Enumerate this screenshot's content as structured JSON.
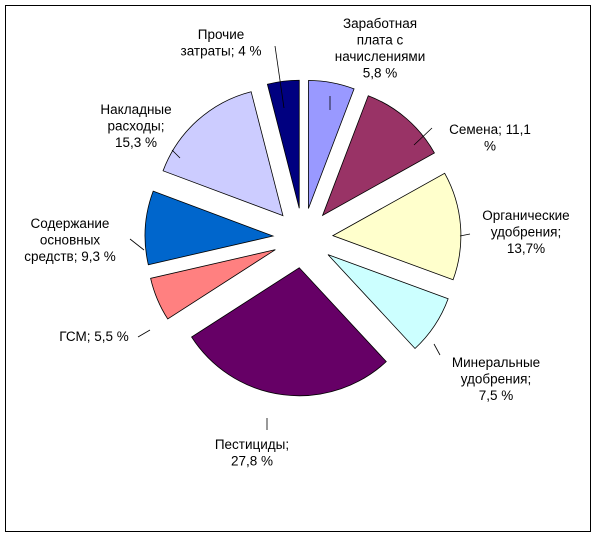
{
  "chart_data": {
    "type": "pie",
    "exploded": true,
    "title": "",
    "slices": [
      {
        "name": "Заработная плата с начислениями",
        "value": 5.8,
        "label_lines": [
          "Заработная",
          "плата с",
          "начислениями",
          "5,8 %"
        ],
        "color": "#9999ff"
      },
      {
        "name": "Семена",
        "value": 11.1,
        "label_lines": [
          "Семена; 11,1",
          "%"
        ],
        "color": "#993366"
      },
      {
        "name": "Органические удобрения",
        "value": 13.7,
        "label_lines": [
          "Органические",
          "удобрения;",
          "13,7%"
        ],
        "color": "#ffffcc"
      },
      {
        "name": "Минеральные удобрения",
        "value": 7.5,
        "label_lines": [
          "Минеральные",
          "удобрения;",
          "7,5 %"
        ],
        "color": "#ccffff"
      },
      {
        "name": "Пестициды",
        "value": 27.8,
        "label_lines": [
          "Пестициды;",
          "27,8 %"
        ],
        "color": "#660066"
      },
      {
        "name": "ГСМ",
        "value": 5.5,
        "label_lines": [
          "ГСМ; 5,5 %"
        ],
        "color": "#ff8080"
      },
      {
        "name": "Содержание основных средств",
        "value": 9.3,
        "label_lines": [
          "Содержание",
          "основных",
          "средств; 9,3 %"
        ],
        "color": "#0066cc"
      },
      {
        "name": "Накладные расходы",
        "value": 15.3,
        "label_lines": [
          "Накладные",
          "расходы;",
          "15,3 %"
        ],
        "color": "#ccccff"
      },
      {
        "name": "Прочие затраты",
        "value": 4.0,
        "label_lines": [
          "Прочие",
          "затраты; 4 %"
        ],
        "color": "#000080"
      }
    ]
  }
}
